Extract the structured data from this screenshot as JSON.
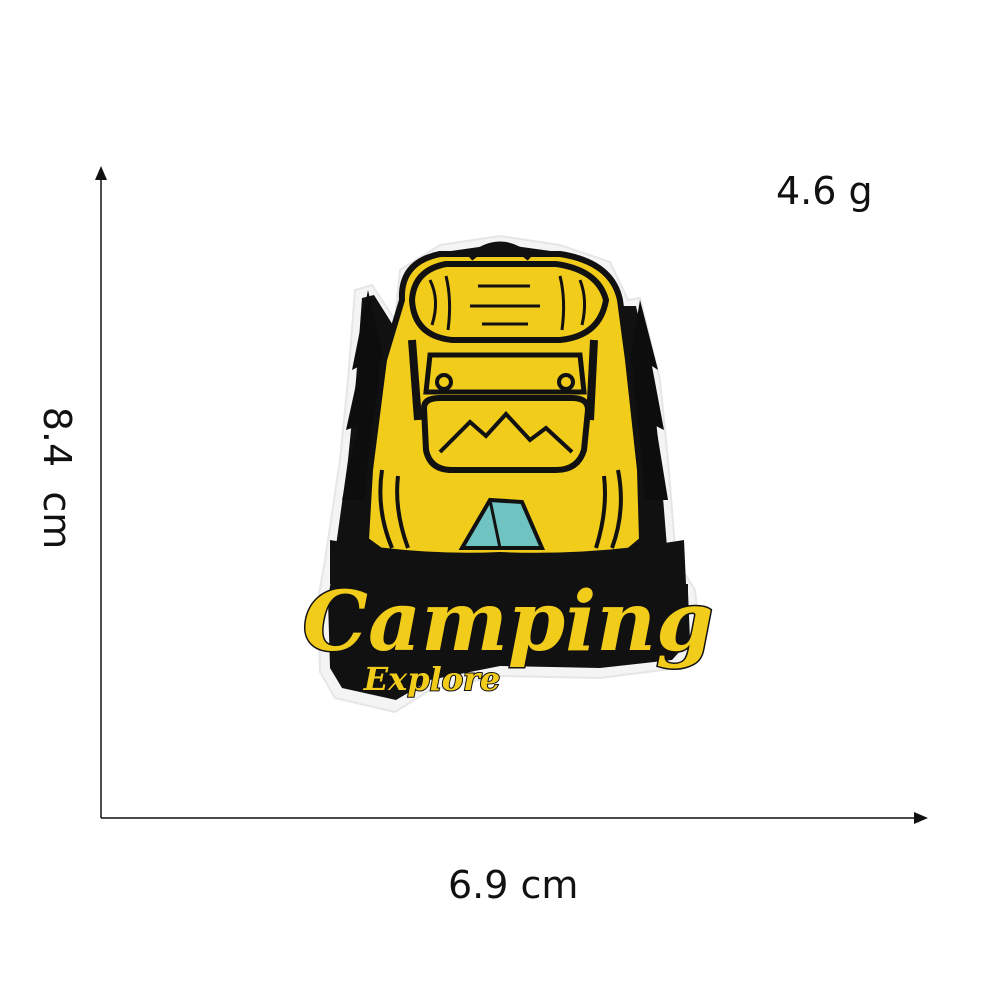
{
  "measurements": {
    "weight": "4.6 g",
    "width": "6.9 cm",
    "height": "8.4  cm"
  },
  "patch": {
    "title": "Camping",
    "subtitle": "Explore",
    "colors": {
      "yellow": "#f2cc1a",
      "black": "#111111",
      "teal": "#6fc3c0",
      "border": "#f2f2f2"
    }
  },
  "icons": [
    "arrow-up-icon",
    "arrow-right-icon",
    "pine-tree-icon",
    "backpack-icon",
    "tent-icon",
    "mountain-icon"
  ]
}
